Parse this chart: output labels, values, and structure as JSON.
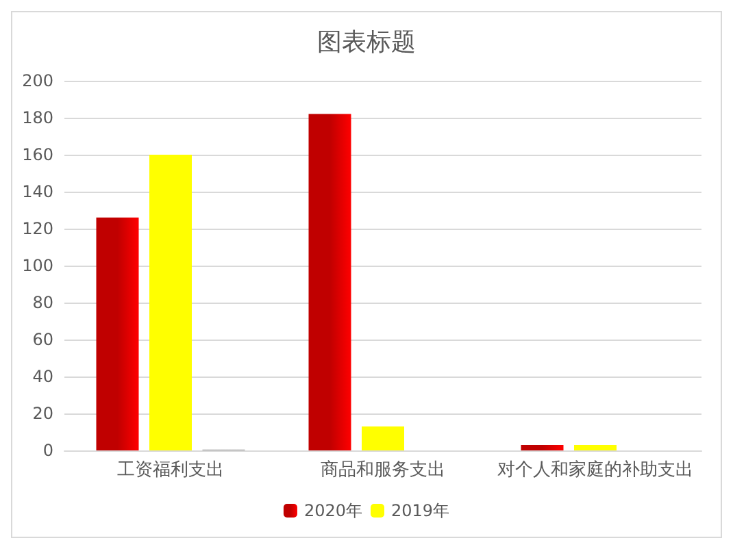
{
  "chart_data": {
    "type": "bar",
    "title": "图表标题",
    "categories": [
      "工资福利支出",
      "商品和服务支出",
      "对个人和家庭的补助支出"
    ],
    "series": [
      {
        "name": "2020年",
        "color": "#c00000",
        "values": [
          126,
          182,
          3
        ]
      },
      {
        "name": "2019年",
        "color": "#ffff00",
        "values": [
          160,
          13,
          3
        ]
      },
      {
        "color": "#a5a5a5",
        "values": [
          0.5,
          null,
          null
        ]
      }
    ],
    "ylim": [
      0,
      200
    ],
    "yticks": [
      0,
      20,
      40,
      60,
      80,
      100,
      120,
      140,
      160,
      180,
      200
    ],
    "grid": "y",
    "legend": "bottom"
  }
}
